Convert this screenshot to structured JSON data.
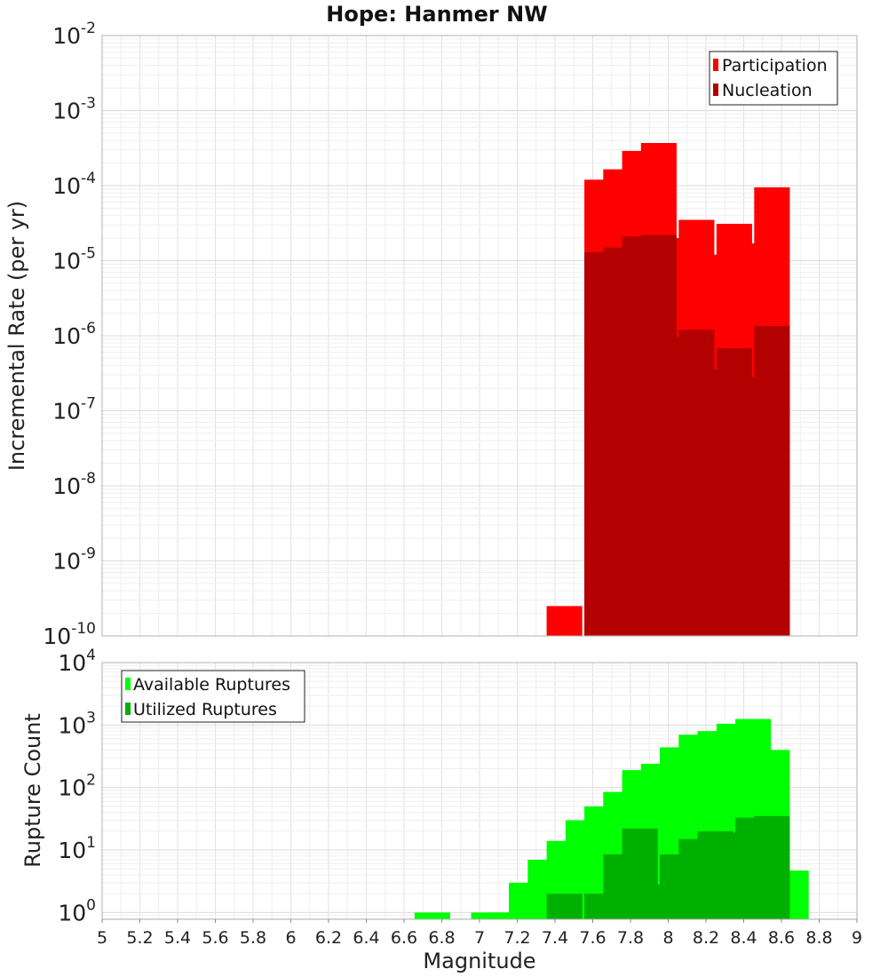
{
  "chart_data": [
    {
      "type": "bar",
      "title": "Hope: Hanmer NW",
      "xlabel": "",
      "ylabel": "Incremental Rate (per yr)",
      "xlim": [
        5,
        9
      ],
      "ylim": [
        1e-10,
        0.01
      ],
      "yscale": "log",
      "grid": true,
      "legend_position": "top-right",
      "bar_width": 0.2,
      "y_ticks": [
        {
          "base": "10",
          "exp": "-10",
          "value": 1e-10
        },
        {
          "base": "10",
          "exp": "-9",
          "value": 1e-09
        },
        {
          "base": "10",
          "exp": "-8",
          "value": 1e-08
        },
        {
          "base": "10",
          "exp": "-7",
          "value": 1e-07
        },
        {
          "base": "10",
          "exp": "-6",
          "value": 1e-06
        },
        {
          "base": "10",
          "exp": "-5",
          "value": 1e-05
        },
        {
          "base": "10",
          "exp": "-4",
          "value": 0.0001
        },
        {
          "base": "10",
          "exp": "-3",
          "value": 0.001
        },
        {
          "base": "10",
          "exp": "-2",
          "value": 0.01
        }
      ],
      "x": [
        7.45,
        7.65,
        7.75,
        7.85,
        7.95,
        8.05,
        8.15,
        8.25,
        8.35,
        8.45,
        8.55
      ],
      "series": [
        {
          "name": "Participation",
          "color": "#ff0000",
          "values": [
            2.5e-10,
            0.00012,
            0.000165,
            0.00029,
            0.00037,
            2e-05,
            3.5e-05,
            1.2e-05,
            3.1e-05,
            1.7e-05,
            9.5e-05
          ]
        },
        {
          "name": "Nucleation",
          "color": "#b30000",
          "values": [
            null,
            1.3e-05,
            1.5e-05,
            2.1e-05,
            2.2e-05,
            9.5e-07,
            1.2e-06,
            3.5e-07,
            6.8e-07,
            2.8e-07,
            1.35e-06
          ]
        }
      ]
    },
    {
      "type": "bar",
      "title": "",
      "xlabel": "Magnitude",
      "ylabel": "Rupture Count",
      "xlim": [
        5,
        9
      ],
      "ylim": [
        0.78,
        10000
      ],
      "yscale": "log",
      "grid": true,
      "legend_position": "top-left",
      "bar_width": 0.2,
      "x_ticks": [
        "5",
        "5.2",
        "5.4",
        "5.6",
        "5.8",
        "6",
        "6.2",
        "6.4",
        "6.6",
        "6.8",
        "7",
        "7.2",
        "7.4",
        "7.6",
        "7.8",
        "8",
        "8.2",
        "8.4",
        "8.6",
        "8.8",
        "9"
      ],
      "y_ticks": [
        {
          "base": "10",
          "exp": "0",
          "value": 1
        },
        {
          "base": "10",
          "exp": "1",
          "value": 10
        },
        {
          "base": "10",
          "exp": "2",
          "value": 100
        },
        {
          "base": "10",
          "exp": "3",
          "value": 1000
        },
        {
          "base": "10",
          "exp": "4",
          "value": 10000
        }
      ],
      "x": [
        6.75,
        7.05,
        7.15,
        7.25,
        7.35,
        7.45,
        7.55,
        7.65,
        7.75,
        7.85,
        7.95,
        8.05,
        8.15,
        8.25,
        8.35,
        8.45,
        8.55,
        8.65
      ],
      "series": [
        {
          "name": "Available Ruptures",
          "color": "#00ff00",
          "values": [
            1,
            1,
            1,
            3,
            7,
            14,
            30,
            50,
            85,
            190,
            240,
            440,
            700,
            800,
            1050,
            1250,
            400,
            4.7
          ]
        },
        {
          "name": "Utilized Ruptures",
          "color": "#00b000",
          "values": [
            null,
            null,
            null,
            null,
            null,
            2,
            null,
            2,
            8.5,
            22,
            2.8,
            8.5,
            15,
            20,
            19,
            33,
            35,
            null
          ]
        }
      ]
    }
  ]
}
